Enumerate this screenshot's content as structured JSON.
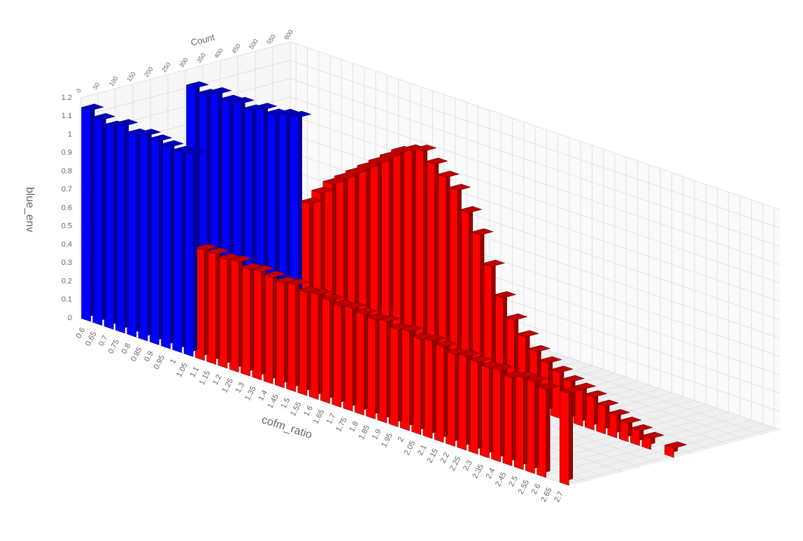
{
  "chart_data": {
    "type": "bar3d",
    "x_label": "cofm_ratio",
    "y_label": "Count",
    "z_label": "blue_env",
    "xlim": [
      0.575,
      2.725
    ],
    "ylim": [
      0,
      600
    ],
    "zlim": [
      0,
      1.2
    ],
    "xticks": [
      0.6,
      0.65,
      0.7,
      0.75,
      0.8,
      0.85,
      0.9,
      0.95,
      1,
      1.05,
      1.1,
      1.15,
      1.2,
      1.25,
      1.3,
      1.35,
      1.4,
      1.45,
      1.5,
      1.55,
      1.6,
      1.65,
      1.7,
      1.75,
      1.8,
      1.85,
      1.9,
      1.95,
      2,
      2.05,
      2.1,
      2.15,
      2.2,
      2.25,
      2.3,
      2.35,
      2.4,
      2.45,
      2.5,
      2.55,
      2.6,
      2.65,
      2.7
    ],
    "yticks": [
      0,
      50,
      100,
      150,
      200,
      250,
      300,
      350,
      400,
      450,
      500,
      550,
      600
    ],
    "zticks": [
      0,
      0.1,
      0.2,
      0.3,
      0.4,
      0.5,
      0.6,
      0.7,
      0.8,
      0.9,
      1,
      1.1,
      1.2
    ],
    "grid": true,
    "series": [
      {
        "color": "#0000ff",
        "x": [
          0.6,
          0.65,
          0.7,
          0.75,
          0.8,
          0.85,
          0.9,
          0.95,
          1,
          1.05,
          0.6,
          0.65,
          0.7,
          0.75,
          0.8,
          0.85,
          0.9,
          0.95,
          1,
          1.05
        ],
        "y": [
          300,
          300,
          300,
          300,
          300,
          300,
          300,
          300,
          300,
          300,
          0,
          0,
          0,
          0,
          0,
          0,
          0,
          0,
          0,
          0
        ],
        "z": [
          1.12,
          1.1,
          1.13,
          1.11,
          1.12,
          1.1,
          1.13,
          1.12,
          1.14,
          1.15,
          1.15,
          1.12,
          1.1,
          1.13,
          1.1,
          1.12,
          1.11,
          1.1,
          1.09,
          1.1
        ]
      },
      {
        "color": "#ff0000",
        "x": [
          1.1,
          1.15,
          1.2,
          1.25,
          1.3,
          1.35,
          1.4,
          1.45,
          1.5,
          1.55,
          1.6,
          1.65,
          1.7,
          1.75,
          1.8,
          1.85,
          1.9,
          1.95,
          2,
          2.05,
          2.1,
          2.15,
          2.2,
          2.25,
          2.3,
          2.35,
          2.4,
          2.45,
          2.5,
          2.55,
          2.6,
          2.7,
          1.1,
          1.15,
          1.2,
          1.25,
          1.3,
          1.35,
          1.4,
          1.45,
          1.5,
          1.55,
          1.6,
          1.65,
          1.7,
          1.75,
          1.8,
          1.85,
          1.9,
          1.95,
          2,
          2.05,
          2.1,
          2.15,
          2.2,
          2.25,
          2.3,
          2.35,
          2.4,
          2.45,
          2.5,
          2.55,
          2.6,
          2.7
        ],
        "y": [
          300,
          300,
          300,
          300,
          300,
          300,
          300,
          300,
          300,
          300,
          300,
          300,
          300,
          300,
          300,
          300,
          300,
          300,
          300,
          300,
          300,
          300,
          300,
          300,
          300,
          300,
          300,
          300,
          300,
          300,
          300,
          300,
          0,
          0,
          0,
          0,
          0,
          0,
          0,
          0,
          0,
          0,
          0,
          0,
          0,
          0,
          0,
          0,
          0,
          0,
          0,
          0,
          0,
          0,
          0,
          0,
          0,
          0,
          0,
          0,
          0,
          0,
          0,
          0
        ],
        "z": [
          0.7,
          0.78,
          0.85,
          0.9,
          0.95,
          1,
          1.05,
          1.1,
          1.15,
          1.18,
          1.2,
          1.15,
          1.1,
          1.05,
          0.95,
          0.85,
          0.7,
          0.55,
          0.45,
          0.38,
          0.32,
          0.28,
          0.25,
          0.22,
          0.2,
          0.18,
          0.15,
          0.12,
          0.1,
          0.08,
          0.06,
          0.05,
          0.6,
          0.6,
          0.59,
          0.6,
          0.58,
          0.59,
          0.58,
          0.57,
          0.58,
          0.56,
          0.57,
          0.56,
          0.55,
          0.56,
          0.55,
          0.54,
          0.55,
          0.53,
          0.54,
          0.52,
          0.53,
          0.52,
          0.5,
          0.51,
          0.5,
          0.49,
          0.5,
          0.48,
          0.5,
          0.5,
          0.48,
          0.5
        ]
      }
    ]
  }
}
